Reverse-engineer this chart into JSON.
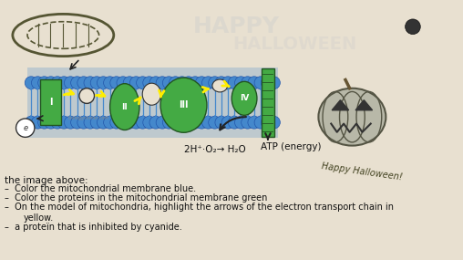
{
  "bg_color": "#e8e0d0",
  "membrane_color": "#4488cc",
  "lipid_head_color": "#5599dd",
  "protein_color": "#44aa44",
  "carrier_color": "#555555",
  "atp_protein_color": "#44aa44",
  "arrow_color": "#ffee00",
  "arrow_black": "#222222",
  "text_color": "#111111",
  "title": "the image above:",
  "bullet1": "Color the mitochondrial membrane blue.",
  "bullet2": "Color the proteins in the mitochondrial membrane green",
  "bullet3": "On the model of mitochondria, highlight the arrows of the electron transport chain in",
  "bullet3b": "yellow.",
  "bullet4": "a proteïn that is inhibited by cyanide.",
  "equation": "2H⁺·O₂→ H₂O",
  "atp_label": "ATP (energy)",
  "roman_I": "I",
  "roman_II": "II",
  "roman_III": "III",
  "roman_IV": "IV",
  "pumpkin_color": "#aaaaaa",
  "pumpkin_dark": "#444444",
  "dot_color": "#333333"
}
